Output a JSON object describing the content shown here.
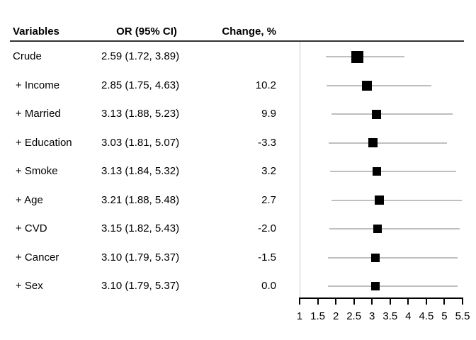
{
  "header": {
    "variables": "Variables",
    "or_ci": "OR (95% CI)",
    "change": "Change, %"
  },
  "chart_data": {
    "type": "scatter",
    "subtype": "forest-plot",
    "title": "",
    "xlabel": "",
    "x_axis": {
      "min": 1,
      "max": 5.5,
      "tick_values": [
        1,
        1.5,
        2,
        2.5,
        3,
        3.5,
        4,
        4.5,
        5,
        5.5
      ],
      "tick_labels": [
        "1",
        "1.5",
        "2",
        "2.5",
        "3",
        "3.5",
        "4",
        "4.5",
        "5",
        "5.5"
      ]
    },
    "rows": [
      {
        "label": "Crude",
        "or": 2.59,
        "ci_low": 1.72,
        "ci_high": 3.89,
        "or_ci_text": "2.59 (1.72, 3.89)",
        "change_text": "",
        "marker_size": 17
      },
      {
        "label": "+ Income",
        "or": 2.85,
        "ci_low": 1.75,
        "ci_high": 4.63,
        "or_ci_text": "2.85 (1.75, 4.63)",
        "change_text": "10.2",
        "marker_size": 14
      },
      {
        "label": "+ Married",
        "or": 3.13,
        "ci_low": 1.88,
        "ci_high": 5.23,
        "or_ci_text": "3.13 (1.88, 5.23)",
        "change_text": "9.9",
        "marker_size": 13
      },
      {
        "label": "+ Education",
        "or": 3.03,
        "ci_low": 1.81,
        "ci_high": 5.07,
        "or_ci_text": "3.03 (1.81, 5.07)",
        "change_text": "-3.3",
        "marker_size": 13
      },
      {
        "label": "+ Smoke",
        "or": 3.13,
        "ci_low": 1.84,
        "ci_high": 5.32,
        "or_ci_text": "3.13 (1.84, 5.32)",
        "change_text": "3.2",
        "marker_size": 12
      },
      {
        "label": "+ Age",
        "or": 3.21,
        "ci_low": 1.88,
        "ci_high": 5.48,
        "or_ci_text": "3.21 (1.88, 5.48)",
        "change_text": "2.7",
        "marker_size": 13
      },
      {
        "label": "+ CVD",
        "or": 3.15,
        "ci_low": 1.82,
        "ci_high": 5.43,
        "or_ci_text": "3.15 (1.82, 5.43)",
        "change_text": "-2.0",
        "marker_size": 12
      },
      {
        "label": "+ Cancer",
        "or": 3.1,
        "ci_low": 1.79,
        "ci_high": 5.37,
        "or_ci_text": "3.10 (1.79, 5.37)",
        "change_text": "-1.5",
        "marker_size": 12
      },
      {
        "label": "+ Sex",
        "or": 3.1,
        "ci_low": 1.79,
        "ci_high": 5.37,
        "or_ci_text": "3.10 (1.79, 5.37)",
        "change_text": "0.0",
        "marker_size": 12
      }
    ],
    "legend": null,
    "grid": false
  },
  "colors": {
    "text": "#000000",
    "header_rule": "#333333",
    "ci_line": "#bfbfbf",
    "reference_line": "#c8c8c8",
    "marker": "#000000",
    "axis": "#000000",
    "background": "#ffffff"
  }
}
